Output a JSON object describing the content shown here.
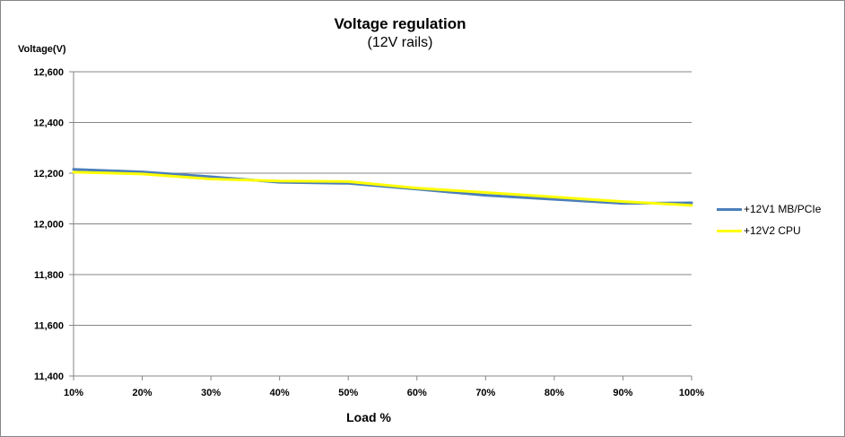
{
  "chart_data": {
    "type": "line",
    "title": "Voltage regulation",
    "subtitle": "(12V rails)",
    "xlabel": "Load %",
    "ylabel": "Voltage(V)",
    "categories": [
      "10%",
      "20%",
      "30%",
      "40%",
      "50%",
      "60%",
      "70%",
      "80%",
      "90%",
      "100%"
    ],
    "yticks": [
      "11,400",
      "11,600",
      "11,800",
      "12,000",
      "12,200",
      "12,400",
      "12,600"
    ],
    "ylim": [
      11400,
      12600
    ],
    "grid": true,
    "legend_position": "right",
    "series": [
      {
        "name": "+12V1 MB/PCIe",
        "color": "#4a7ebb",
        "values": [
          12215,
          12205,
          12186,
          12164,
          12160,
          12137,
          12113,
          12097,
          12081,
          12083
        ]
      },
      {
        "name": "+12V2 CPU",
        "color": "#ffff00",
        "values": [
          12204,
          12197,
          12177,
          12169,
          12167,
          12141,
          12124,
          12106,
          12088,
          12073
        ]
      }
    ]
  }
}
